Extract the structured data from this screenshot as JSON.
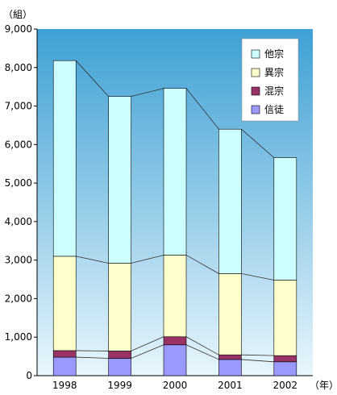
{
  "chart_data": {
    "type": "bar",
    "stacked": true,
    "y_unit_label": "（組）",
    "x_unit_label": "（年）",
    "categories": [
      "1998",
      "1999",
      "2000",
      "2001",
      "2002"
    ],
    "y_ticks": [
      "0",
      "1,000",
      "2,000",
      "3,000",
      "4,000",
      "5,000",
      "6,000",
      "7,000",
      "8,000",
      "9,000"
    ],
    "ylim": [
      0,
      9000
    ],
    "grid": false,
    "legend_position": "top-right",
    "series": [
      {
        "name": "信徒",
        "color": "#9999ff",
        "values": [
          480,
          450,
          800,
          420,
          360
        ]
      },
      {
        "name": "混宗",
        "color": "#993366",
        "values": [
          170,
          190,
          210,
          120,
          160
        ]
      },
      {
        "name": "異宗",
        "color": "#ffffcc",
        "values": [
          2450,
          2280,
          2120,
          2110,
          1960
        ]
      },
      {
        "name": "他宗",
        "color": "#ccffff",
        "values": [
          5080,
          4330,
          4330,
          3750,
          3180
        ]
      }
    ],
    "legend_order": [
      "他宗",
      "異宗",
      "混宗",
      "信徒"
    ],
    "colors": {
      "plot_top": "#3ea0d4",
      "plot_bottom": "#e8f6fc",
      "legend_bg": "#ffffff",
      "bar_stroke": "#000000",
      "connector": "#333333"
    }
  }
}
